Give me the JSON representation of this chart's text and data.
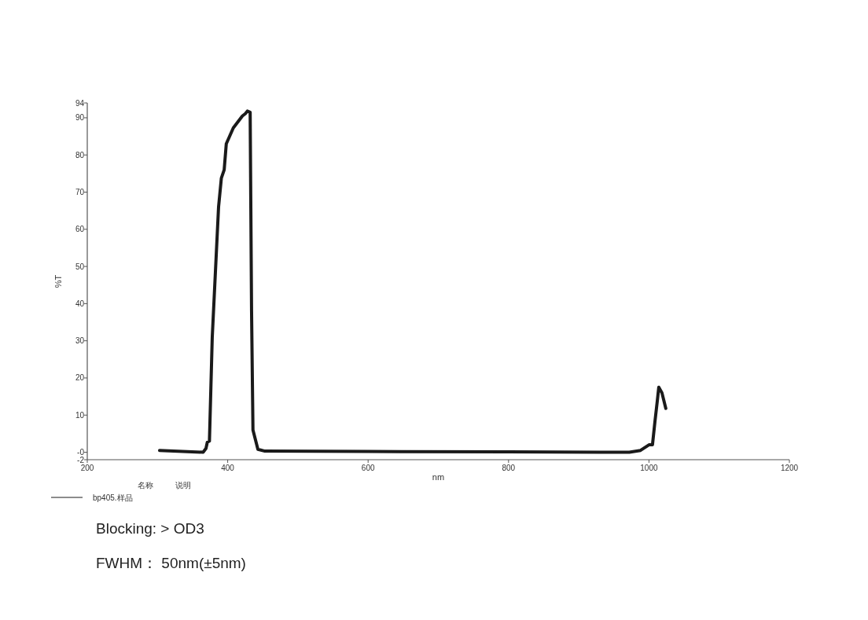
{
  "chart_data": {
    "type": "line",
    "xlabel": "nm",
    "ylabel": "%T",
    "xlim": [
      200,
      1200
    ],
    "xticks": [
      200,
      400,
      600,
      800,
      1000,
      1200
    ],
    "ylim": [
      -2,
      94
    ],
    "yticks": [
      {
        "value": -2,
        "label": "-2"
      },
      {
        "value": 0,
        "label": "-0"
      },
      10,
      20,
      30,
      40,
      50,
      60,
      70,
      80,
      90,
      94
    ],
    "legend": "bottom left",
    "legend_title": "名称",
    "series": [
      {
        "name": "bp405.样品",
        "color": "#1a1a1a",
        "x": [
          303,
          365,
          369,
          371,
          374,
          378,
          387,
          391,
          395,
          398,
          408,
          421,
          425,
          428,
          432,
          434,
          436,
          443,
          453,
          600,
          800,
          972,
          988,
          1000,
          1005,
          1008.5,
          1012,
          1014,
          1018.5,
          1024
        ],
        "values": [
          0.5,
          0,
          1,
          2.7,
          3,
          30.9,
          66,
          73.8,
          76,
          83,
          87.3,
          90.5,
          91.1,
          91.8,
          91.5,
          38,
          6,
          0.8,
          0.3,
          0.2,
          0.1,
          0,
          0.5,
          2,
          2,
          8.2,
          14,
          17.5,
          16,
          11.8
        ]
      }
    ],
    "annotations": [
      "说明",
      "Blocking:  > OD3",
      "FWHM：  50nm(±5nm)"
    ]
  }
}
